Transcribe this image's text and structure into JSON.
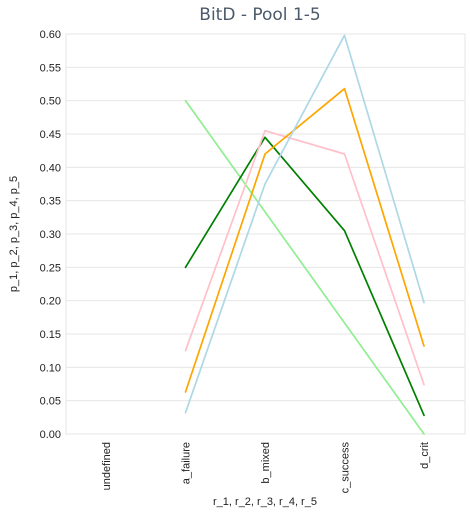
{
  "chart_data": {
    "type": "line",
    "title": "BitD - Pool 1-5",
    "xlabel": "r_1, r_2, r_3, r_4, r_5",
    "ylabel": "p_1, p_2, p_3, p_4, p_5",
    "categories": [
      "undefined",
      "a_failure",
      "b_mixed",
      "c_success",
      "d_crit"
    ],
    "ylim": [
      0,
      0.6
    ],
    "yticks": [
      "0.00",
      "0.05",
      "0.10",
      "0.15",
      "0.20",
      "0.25",
      "0.30",
      "0.35",
      "0.40",
      "0.45",
      "0.50",
      "0.55",
      "0.60"
    ],
    "grid": true,
    "series": [
      {
        "color": "#90ee90",
        "values": [
          null,
          0.5,
          null,
          null,
          0.0
        ]
      },
      {
        "color": "#008000",
        "values": [
          null,
          0.25,
          0.445,
          0.305,
          0.028
        ]
      },
      {
        "color": "#ffc0cb",
        "values": [
          null,
          0.125,
          0.455,
          0.42,
          0.074
        ]
      },
      {
        "color": "#ffa500",
        "values": [
          null,
          0.063,
          0.42,
          0.518,
          0.132
        ]
      },
      {
        "color": "#add8e6",
        "values": [
          null,
          0.032,
          0.375,
          0.598,
          0.197
        ]
      }
    ]
  }
}
